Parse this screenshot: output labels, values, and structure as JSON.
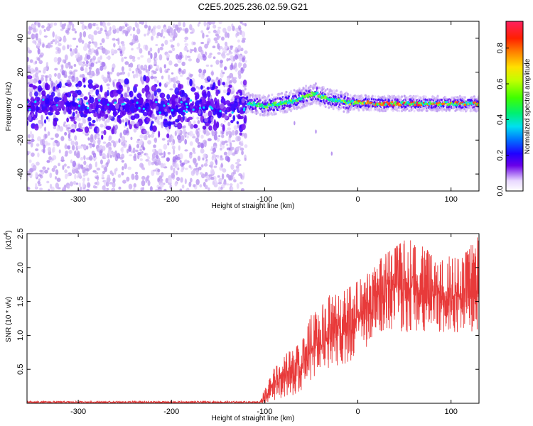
{
  "title": "C2E5.2025.236.02.59.G21",
  "chart_data": [
    {
      "type": "heatmap",
      "xlabel": "Height of straight line (km)",
      "ylabel": "Frequency (Hz)",
      "xlim": [
        -355,
        130
      ],
      "ylim": [
        -50,
        50
      ],
      "xticks": [
        -300,
        -200,
        -100,
        0,
        100
      ],
      "yticks": [
        -40,
        -20,
        0,
        20,
        40
      ],
      "colorbar": {
        "label": "Normalized spectral amplitude",
        "range": [
          0,
          0.95
        ],
        "ticks": [
          "0.0",
          "0.2",
          "0.4",
          "0.6",
          "0.8"
        ],
        "tick_values": [
          0.0,
          0.2,
          0.4,
          0.6,
          0.8
        ],
        "colormap": "rainbow"
      },
      "features": {
        "noise_region_x": [
          -355,
          -120
        ],
        "signal_center_trace": {
          "x": [
            -120,
            -110,
            -100,
            -90,
            -80,
            -70,
            -60,
            -50,
            -45,
            -40,
            -30,
            -20,
            -10,
            0,
            10,
            20,
            30,
            50,
            70,
            90,
            110,
            130
          ],
          "y": [
            2,
            1,
            0,
            1,
            2,
            3,
            5,
            7,
            7.5,
            6,
            4,
            3,
            2,
            2,
            2,
            1.5,
            1.5,
            1.5,
            1.5,
            1.5,
            1.5,
            1.5
          ]
        }
      }
    },
    {
      "type": "line",
      "xlabel": "Height of straight line (km)",
      "ylabel": "SNR (10 * v/v)",
      "scale_label": "(x10",
      "scale_exp": "4",
      "xlim": [
        -355,
        130
      ],
      "ylim": [
        0,
        2.5
      ],
      "xticks": [
        -300,
        -200,
        -100,
        0,
        100
      ],
      "yticks": [
        0.5,
        1.0,
        1.5,
        2.0,
        2.5
      ],
      "ytick_labels": [
        "0.5",
        "1.0",
        "1.5",
        "2.0",
        "2.5"
      ],
      "series": [
        {
          "color": "#e83a3a",
          "envelope": {
            "x": [
              -355,
              -200,
              -105,
              -100,
              -90,
              -80,
              -70,
              -60,
              -50,
              -40,
              -30,
              -20,
              -10,
              0,
              10,
              20,
              30,
              40,
              50,
              60,
              70,
              80,
              90,
              100,
              110,
              120,
              130
            ],
            "low": [
              0.0,
              0.0,
              0.0,
              0.0,
              0.05,
              0.05,
              0.1,
              0.2,
              0.3,
              0.35,
              0.5,
              0.55,
              0.6,
              0.7,
              0.8,
              1.0,
              1.1,
              1.05,
              1.0,
              1.1,
              1.0,
              1.05,
              1.05,
              1.0,
              1.05,
              1.0,
              1.05
            ],
            "high": [
              0.03,
              0.03,
              0.03,
              0.2,
              0.5,
              0.7,
              0.8,
              0.9,
              1.3,
              1.4,
              1.6,
              1.6,
              1.7,
              1.8,
              1.9,
              2.1,
              2.2,
              2.3,
              2.4,
              2.5,
              2.3,
              2.2,
              2.1,
              2.2,
              2.1,
              2.3,
              2.5
            ]
          }
        }
      ]
    }
  ]
}
